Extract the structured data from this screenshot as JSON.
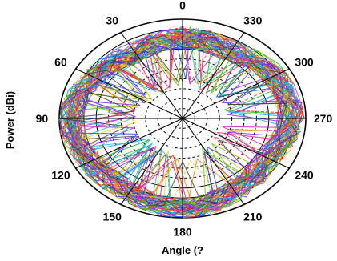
{
  "chart_data": {
    "type": "line",
    "subtype": "polar-radiation-pattern",
    "title": "",
    "xlabel": "Angle (?",
    "ylabel": "Power (dBi)",
    "grid": true,
    "legend": "none",
    "angle_direction": "counterclockwise",
    "zero_location": "top",
    "angle_ticks": [
      0,
      30,
      60,
      90,
      120,
      150,
      180,
      210,
      240,
      270,
      300,
      330
    ],
    "angle_tick_labels": [
      "0",
      "330",
      "300",
      "270",
      "240",
      "210",
      "180",
      "150",
      "120",
      "90",
      "60",
      "30"
    ],
    "radial_rings": 10,
    "series_count": 60,
    "series_colors": [
      "#1f3fff",
      "#ff1f1f",
      "#1fbf1f",
      "#bf1fbf",
      "#1fbfbf",
      "#e6c81f",
      "#ff7f00",
      "#7f1fff",
      "#00a0ff",
      "#ff1f9f",
      "#7fbf00",
      "#404040"
    ],
    "envelope_mean": [
      0.82,
      0.78,
      0.86,
      0.88,
      0.8,
      0.84,
      0.92,
      0.85,
      0.86,
      0.92,
      0.82,
      0.76
    ]
  }
}
